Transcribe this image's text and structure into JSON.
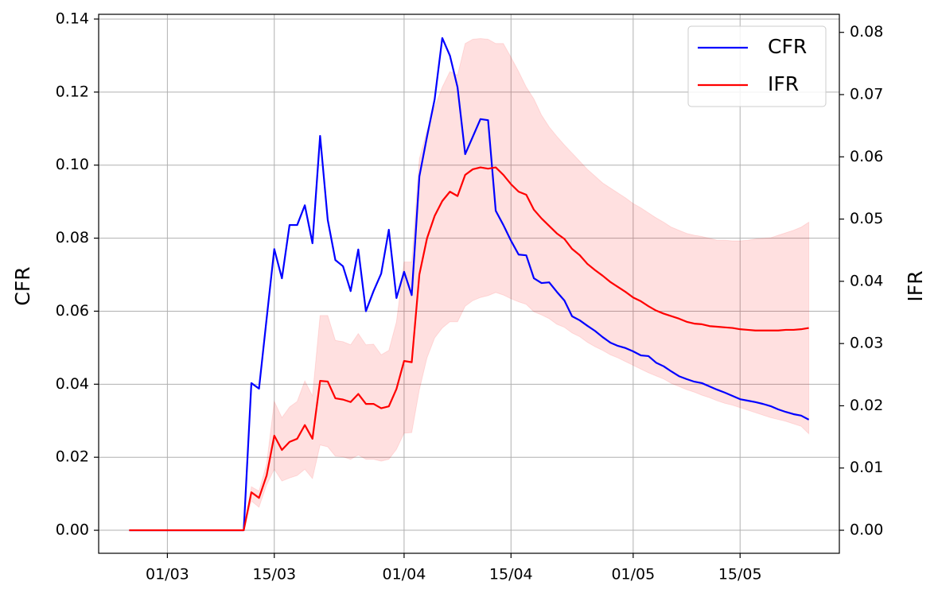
{
  "chart_data": {
    "type": "line",
    "x": [
      "25/02",
      "26/02",
      "27/02",
      "28/02",
      "29/02",
      "01/03",
      "02/03",
      "03/03",
      "04/03",
      "05/03",
      "06/03",
      "07/03",
      "08/03",
      "09/03",
      "10/03",
      "11/03",
      "12/03",
      "13/03",
      "14/03",
      "15/03",
      "16/03",
      "17/03",
      "18/03",
      "19/03",
      "20/03",
      "21/03",
      "22/03",
      "23/03",
      "24/03",
      "25/03",
      "26/03",
      "27/03",
      "28/03",
      "29/03",
      "30/03",
      "31/03",
      "01/04",
      "02/04",
      "03/04",
      "04/04",
      "05/04",
      "06/04",
      "07/04",
      "08/04",
      "09/04",
      "10/04",
      "11/04",
      "12/04",
      "13/04",
      "14/04",
      "15/04",
      "16/04",
      "17/04",
      "18/04",
      "19/04",
      "20/04",
      "21/04",
      "22/04",
      "23/04",
      "24/04",
      "25/04",
      "26/04",
      "27/04",
      "28/04",
      "29/04",
      "30/04",
      "01/05",
      "02/05",
      "03/05",
      "04/05",
      "05/05",
      "06/05",
      "07/05",
      "08/05",
      "09/05",
      "10/05",
      "11/05",
      "12/05",
      "13/05",
      "14/05",
      "15/05",
      "16/05",
      "17/05",
      "18/05",
      "19/05",
      "20/05",
      "21/05",
      "22/05",
      "23/05",
      "24/05"
    ],
    "series": [
      {
        "name": "CFR",
        "color": "#0000ff",
        "axis": "y",
        "values": [
          0,
          0,
          0,
          0,
          0,
          0,
          0,
          0,
          0,
          0,
          0,
          0,
          0,
          0,
          0,
          0,
          0.0403,
          0.0388,
          0.058,
          0.077,
          0.069,
          0.0836,
          0.0836,
          0.089,
          0.0786,
          0.108,
          0.085,
          0.074,
          0.0723,
          0.0655,
          0.0769,
          0.06,
          0.0655,
          0.0703,
          0.0823,
          0.0636,
          0.0708,
          0.0644,
          0.0969,
          0.1078,
          0.118,
          0.1348,
          0.13,
          0.1213,
          0.103,
          0.1078,
          0.1126,
          0.1123,
          0.0875,
          0.0836,
          0.0793,
          0.0755,
          0.0753,
          0.069,
          0.0677,
          0.0679,
          0.0653,
          0.0629,
          0.0586,
          0.0575,
          0.056,
          0.0546,
          0.0529,
          0.0514,
          0.0505,
          0.0499,
          0.049,
          0.0479,
          0.0477,
          0.0459,
          0.0449,
          0.0435,
          0.0422,
          0.0414,
          0.0407,
          0.0403,
          0.0394,
          0.0385,
          0.0377,
          0.0368,
          0.0359,
          0.0355,
          0.0351,
          0.0346,
          0.034,
          0.0331,
          0.0324,
          0.0318,
          0.0314,
          0.0303
        ]
      },
      {
        "name": "IFR",
        "color": "#ff0000",
        "axis": "y2",
        "band_color": "#ff0000",
        "values": [
          0,
          0,
          0,
          0,
          0,
          0,
          0,
          0,
          0,
          0,
          0,
          0,
          0,
          0,
          0,
          0,
          0.0061,
          0.0052,
          0.0088,
          0.0152,
          0.0129,
          0.0142,
          0.0147,
          0.0169,
          0.0147,
          0.024,
          0.0239,
          0.0212,
          0.021,
          0.0206,
          0.0219,
          0.0203,
          0.0203,
          0.0196,
          0.0199,
          0.0227,
          0.0272,
          0.027,
          0.0411,
          0.0469,
          0.0505,
          0.0529,
          0.0544,
          0.0537,
          0.0571,
          0.058,
          0.0583,
          0.0581,
          0.0583,
          0.0571,
          0.0556,
          0.0544,
          0.0539,
          0.0515,
          0.0501,
          0.0489,
          0.0477,
          0.0468,
          0.0452,
          0.0442,
          0.0428,
          0.0418,
          0.0409,
          0.0399,
          0.0391,
          0.0383,
          0.0374,
          0.0368,
          0.036,
          0.0353,
          0.0348,
          0.0344,
          0.034,
          0.0335,
          0.0332,
          0.0331,
          0.0328,
          0.0327,
          0.0326,
          0.0325,
          0.0323,
          0.0322,
          0.0321,
          0.0321,
          0.0321,
          0.0321,
          0.0322,
          0.0322,
          0.0323,
          0.0325
        ],
        "upper": [
          0,
          0,
          0,
          0,
          0,
          0,
          0,
          0,
          0,
          0,
          0,
          0,
          0,
          0,
          0,
          0,
          0.007,
          0.0063,
          0.0107,
          0.0207,
          0.0181,
          0.0198,
          0.0207,
          0.024,
          0.0216,
          0.0345,
          0.0345,
          0.0305,
          0.0303,
          0.0298,
          0.0316,
          0.0298,
          0.0299,
          0.0282,
          0.0289,
          0.0335,
          0.0431,
          0.0431,
          0.0597,
          0.0642,
          0.068,
          0.0712,
          0.0737,
          0.0731,
          0.0782,
          0.0789,
          0.079,
          0.0789,
          0.0782,
          0.0782,
          0.076,
          0.0737,
          0.0712,
          0.0693,
          0.0667,
          0.0648,
          0.0633,
          0.0619,
          0.0606,
          0.0593,
          0.058,
          0.0569,
          0.0558,
          0.055,
          0.0542,
          0.0534,
          0.0525,
          0.0518,
          0.051,
          0.0502,
          0.0495,
          0.0487,
          0.0482,
          0.0477,
          0.0474,
          0.0472,
          0.0469,
          0.0466,
          0.0466,
          0.0465,
          0.0465,
          0.0466,
          0.0468,
          0.0469,
          0.047,
          0.0474,
          0.0478,
          0.0482,
          0.0487,
          0.0495
        ],
        "lower": [
          0,
          0,
          0,
          0,
          0,
          0,
          0,
          0,
          0,
          0,
          0,
          0,
          0,
          0,
          0,
          0,
          0.0047,
          0.0037,
          0.0073,
          0.0098,
          0.0079,
          0.0084,
          0.0088,
          0.0098,
          0.0083,
          0.0137,
          0.0134,
          0.0119,
          0.0118,
          0.0114,
          0.0121,
          0.0114,
          0.0114,
          0.0111,
          0.0114,
          0.013,
          0.0156,
          0.0157,
          0.0226,
          0.0277,
          0.0309,
          0.0325,
          0.0335,
          0.0335,
          0.036,
          0.0369,
          0.0374,
          0.0377,
          0.0382,
          0.0378,
          0.0372,
          0.0367,
          0.0363,
          0.0351,
          0.0346,
          0.034,
          0.0331,
          0.0326,
          0.0317,
          0.0311,
          0.0302,
          0.0295,
          0.0289,
          0.0282,
          0.0277,
          0.0271,
          0.0265,
          0.0259,
          0.0253,
          0.0248,
          0.0243,
          0.0236,
          0.0231,
          0.0226,
          0.0222,
          0.0217,
          0.0213,
          0.0208,
          0.0204,
          0.0201,
          0.0197,
          0.0193,
          0.0189,
          0.0185,
          0.0181,
          0.0178,
          0.0175,
          0.0171,
          0.0167,
          0.0155
        ]
      }
    ],
    "y_label": "CFR",
    "y2_label": "IFR",
    "xlim": [
      "21/02",
      "28/05"
    ],
    "xticks": [
      "01/03",
      "15/03",
      "01/04",
      "15/04",
      "01/05",
      "15/05"
    ],
    "ylim": [
      -0.0063,
      0.1413
    ],
    "yticks": [
      {
        "value": 0,
        "label": "0.00"
      },
      {
        "value": 0.02,
        "label": "0.02"
      },
      {
        "value": 0.04,
        "label": "0.04"
      },
      {
        "value": 0.06,
        "label": "0.06"
      },
      {
        "value": 0.08,
        "label": "0.08"
      },
      {
        "value": 0.1,
        "label": "0.10"
      },
      {
        "value": 0.12,
        "label": "0.12"
      },
      {
        "value": 0.14,
        "label": "0.14"
      }
    ],
    "y2lim": [
      -0.0037,
      0.0829
    ],
    "y2ticks": [
      {
        "value": 0,
        "label": "0.00"
      },
      {
        "value": 0.01,
        "label": "0.01"
      },
      {
        "value": 0.02,
        "label": "0.02"
      },
      {
        "value": 0.03,
        "label": "0.03"
      },
      {
        "value": 0.04,
        "label": "0.04"
      },
      {
        "value": 0.05,
        "label": "0.05"
      },
      {
        "value": 0.06,
        "label": "0.06"
      },
      {
        "value": 0.07,
        "label": "0.07"
      },
      {
        "value": 0.08,
        "label": "0.08"
      }
    ],
    "grid": true,
    "legend": "upper right"
  }
}
